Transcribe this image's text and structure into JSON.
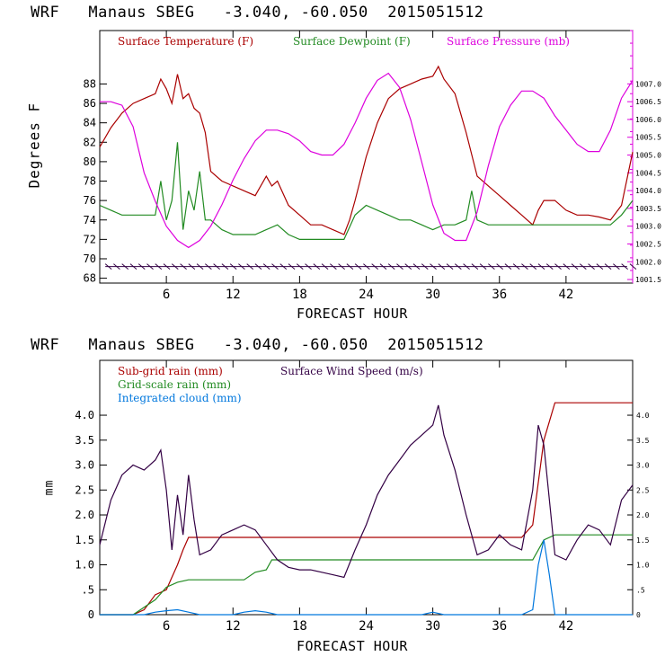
{
  "title_top": "WRF   Manaus SBEG   -3.040, -60.050  2015051512",
  "title_bottom": "WRF   Manaus SBEG   -3.040, -60.050  2015051512",
  "chart_data": [
    {
      "type": "line",
      "xlabel": "FORECAST HOUR",
      "ylabel": "Degrees F",
      "x_ticks": [
        6,
        12,
        18,
        24,
        30,
        36,
        42
      ],
      "y_ticks": [
        68,
        70,
        72,
        74,
        76,
        78,
        80,
        82,
        84,
        86,
        88
      ],
      "y_right_ticks": [
        "1001.5",
        "1002.0",
        "1002.5",
        "1003.0",
        "1003.5",
        "1004.0",
        "1004.5",
        "1005.0",
        "1005.5",
        "1006.0",
        "1006.5",
        "1007.0"
      ],
      "xlim": [
        0,
        48
      ],
      "ylim": [
        67.5,
        93.5
      ],
      "y_right_lim": [
        1001.4,
        1008.5
      ],
      "colors": {
        "temperature": "#aa0000",
        "dewpoint": "#228b22",
        "pressure": "#dd00dd",
        "wind_barbs": "#330044"
      },
      "series": [
        {
          "name": "Surface Temperature (F)",
          "axis": "left",
          "x": [
            0,
            1,
            2,
            3,
            4,
            5,
            5.5,
            6,
            6.5,
            7,
            7.5,
            8,
            8.5,
            9,
            9.5,
            10,
            11,
            12,
            13,
            14,
            15,
            15.5,
            16,
            17,
            18,
            19,
            20,
            21,
            22,
            22.5,
            23,
            24,
            25,
            26,
            27,
            28,
            29,
            30,
            30.5,
            31,
            32,
            33,
            34,
            35,
            36,
            37,
            38,
            39,
            39.5,
            40,
            41,
            42,
            43,
            44,
            45,
            46,
            47,
            48
          ],
          "y": [
            81.5,
            83.5,
            85,
            86,
            86.5,
            87,
            88.5,
            87.5,
            86,
            89,
            86.5,
            87,
            85.5,
            85,
            83,
            79,
            78,
            77.5,
            77,
            76.5,
            78.5,
            77.5,
            78,
            75.5,
            74.5,
            73.5,
            73.5,
            73,
            72.5,
            74,
            76,
            80.5,
            84,
            86.5,
            87.5,
            88,
            88.5,
            88.8,
            89.8,
            88.5,
            87,
            83,
            78.5,
            77.5,
            76.5,
            75.5,
            74.5,
            73.5,
            75,
            76,
            76,
            75,
            74.5,
            74.5,
            74.3,
            74,
            75.5,
            81
          ]
        },
        {
          "name": "Surface Dewpoint (F)",
          "axis": "left",
          "x": [
            0,
            1,
            2,
            3,
            4,
            5,
            5.5,
            6,
            6.5,
            7,
            7.5,
            8,
            8.5,
            9,
            9.5,
            10,
            11,
            12,
            13,
            14,
            15,
            16,
            17,
            18,
            19,
            20,
            21,
            22,
            23,
            24,
            25,
            26,
            27,
            28,
            29,
            30,
            31,
            32,
            33,
            33.5,
            34,
            35,
            36,
            37,
            38,
            39,
            40,
            41,
            42,
            43,
            44,
            45,
            46,
            47,
            48
          ],
          "y": [
            75.5,
            75,
            74.5,
            74.5,
            74.5,
            74.5,
            78,
            74,
            76,
            82,
            73,
            77,
            75,
            79,
            74,
            74,
            73,
            72.5,
            72.5,
            72.5,
            73,
            73.5,
            72.5,
            72,
            72,
            72,
            72,
            72,
            74.5,
            75.5,
            75,
            74.5,
            74,
            74,
            73.5,
            73,
            73.5,
            73.5,
            74,
            77,
            74,
            73.5,
            73.5,
            73.5,
            73.5,
            73.5,
            73.5,
            73.5,
            73.5,
            73.5,
            73.5,
            73.5,
            73.5,
            74.5,
            76
          ]
        },
        {
          "name": "Surface Pressure (mb)",
          "axis": "right",
          "x": [
            0,
            1,
            2,
            3,
            4,
            5,
            6,
            7,
            8,
            9,
            10,
            11,
            12,
            13,
            14,
            15,
            16,
            17,
            18,
            19,
            20,
            21,
            22,
            23,
            24,
            25,
            26,
            27,
            28,
            29,
            30,
            31,
            32,
            33,
            34,
            35,
            36,
            37,
            38,
            39,
            40,
            41,
            42,
            43,
            44,
            45,
            46,
            47,
            48
          ],
          "y": [
            1006.5,
            1006.5,
            1006.4,
            1005.8,
            1004.5,
            1003.7,
            1003.0,
            1002.6,
            1002.4,
            1002.6,
            1003.0,
            1003.6,
            1004.3,
            1004.9,
            1005.4,
            1005.7,
            1005.7,
            1005.6,
            1005.4,
            1005.1,
            1005.0,
            1005.0,
            1005.3,
            1005.9,
            1006.6,
            1007.1,
            1007.3,
            1006.9,
            1006.0,
            1004.8,
            1003.6,
            1002.8,
            1002.6,
            1002.6,
            1003.4,
            1004.7,
            1005.8,
            1006.4,
            1006.8,
            1006.8,
            1006.6,
            1006.1,
            1005.7,
            1005.3,
            1005.1,
            1005.1,
            1005.7,
            1006.6,
            1007.1
          ]
        }
      ],
      "legend": [
        "Surface Temperature (F)",
        "Surface Dewpoint (F)",
        "Surface Pressure (mb)"
      ],
      "legend_placement": "top",
      "grid": false
    },
    {
      "type": "line",
      "xlabel": "FORECAST HOUR",
      "ylabel": "mm",
      "x_ticks": [
        6,
        12,
        18,
        24,
        30,
        36,
        42
      ],
      "y_ticks": [
        "0",
        ".5",
        "1.0",
        "1.5",
        "2.0",
        "2.5",
        "3.0",
        "3.5",
        "4.0"
      ],
      "y_right_ticks": [
        "0",
        ".5",
        "1.0",
        "1.5",
        "2.0",
        "2.5",
        "3.0",
        "3.5",
        "4.0"
      ],
      "xlim": [
        0,
        48
      ],
      "ylim": [
        0,
        5.1
      ],
      "colors": {
        "subgrid": "#aa0000",
        "gridscale": "#228b22",
        "cloud": "#0077dd",
        "wind": "#330044"
      },
      "series": [
        {
          "name": "Sub-grid rain (mm)",
          "x": [
            0,
            3,
            4,
            5,
            6,
            7,
            7.5,
            8,
            10,
            20,
            30,
            38,
            39,
            40,
            41,
            48
          ],
          "y": [
            0,
            0,
            0.1,
            0.4,
            0.5,
            1.0,
            1.3,
            1.55,
            1.55,
            1.55,
            1.55,
            1.55,
            1.8,
            3.5,
            4.25,
            4.25
          ]
        },
        {
          "name": "Grid-scale rain (mm)",
          "x": [
            0,
            3,
            4,
            5,
            6,
            7,
            8,
            9,
            13,
            14,
            15,
            15.5,
            20,
            30,
            39,
            40,
            41,
            48
          ],
          "y": [
            0,
            0,
            0.15,
            0.3,
            0.55,
            0.65,
            0.7,
            0.7,
            0.7,
            0.85,
            0.9,
            1.1,
            1.1,
            1.1,
            1.1,
            1.5,
            1.6,
            1.6
          ]
        },
        {
          "name": "Integrated cloud (mm)",
          "x": [
            0,
            4,
            5,
            6,
            7,
            8,
            9,
            12,
            13,
            14,
            15,
            16,
            29,
            30,
            31,
            38,
            39,
            39.5,
            40,
            40.5,
            41,
            48
          ],
          "y": [
            0,
            0,
            0.05,
            0.08,
            0.1,
            0.05,
            0,
            0,
            0.05,
            0.08,
            0.05,
            0,
            0,
            0.05,
            0,
            0,
            0.1,
            1.0,
            1.5,
            0.8,
            0,
            0
          ]
        },
        {
          "name": "Surface Wind Speed (m/s)",
          "x": [
            0,
            1,
            2,
            3,
            4,
            5,
            5.5,
            6,
            6.5,
            7,
            7.5,
            8,
            8.5,
            9,
            10,
            11,
            12,
            13,
            14,
            15,
            16,
            17,
            18,
            19,
            20,
            21,
            22,
            23,
            24,
            25,
            26,
            27,
            28,
            29,
            30,
            30.5,
            31,
            32,
            33,
            34,
            35,
            36,
            37,
            38,
            39,
            39.5,
            40,
            41,
            42,
            43,
            44,
            45,
            46,
            47,
            48
          ],
          "y": [
            1.4,
            2.3,
            2.8,
            3.0,
            2.9,
            3.1,
            3.3,
            2.5,
            1.3,
            2.4,
            1.6,
            2.8,
            1.9,
            1.2,
            1.3,
            1.6,
            1.7,
            1.8,
            1.7,
            1.4,
            1.1,
            0.95,
            0.9,
            0.9,
            0.85,
            0.8,
            0.75,
            1.3,
            1.8,
            2.4,
            2.8,
            3.1,
            3.4,
            3.6,
            3.8,
            4.2,
            3.6,
            2.9,
            2.0,
            1.2,
            1.3,
            1.6,
            1.4,
            1.3,
            2.5,
            3.8,
            3.4,
            1.2,
            1.1,
            1.5,
            1.8,
            1.7,
            1.4,
            2.3,
            2.6
          ]
        }
      ],
      "legend": [
        "Sub-grid rain (mm)",
        "Surface Wind Speed (m/s)",
        "Grid-scale rain (mm)",
        "Integrated cloud (mm)"
      ],
      "legend_placement": "top-left",
      "grid": false
    }
  ]
}
